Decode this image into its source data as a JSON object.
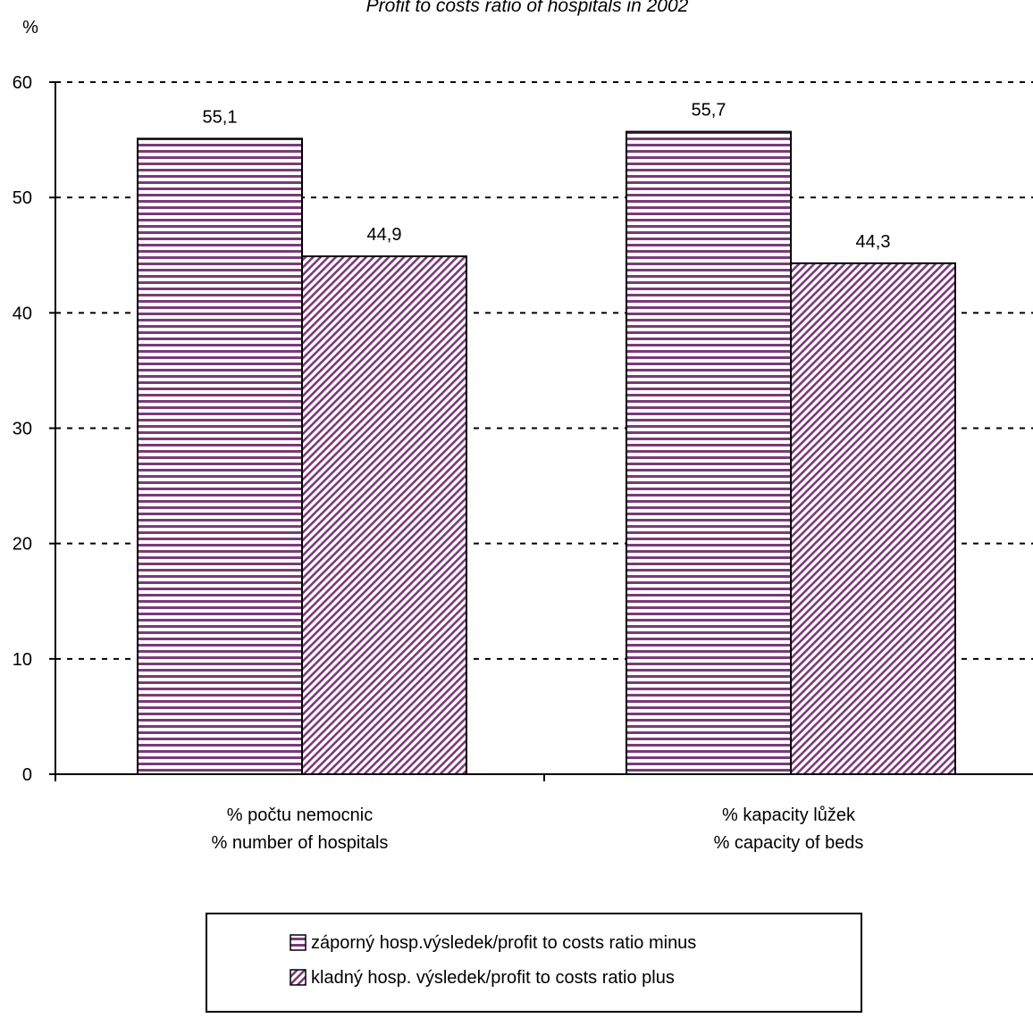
{
  "chart_data": {
    "type": "bar",
    "title": "Profit to costs ratio of hospitals in 2002",
    "ylabel": "%",
    "xlabel": "",
    "ylim": [
      0,
      60
    ],
    "yticks": [
      0,
      10,
      20,
      30,
      40,
      50,
      60
    ],
    "grid": true,
    "legend_position": "bottom",
    "categories": [
      [
        "% počtu nemocnic",
        "% number of hospitals"
      ],
      [
        "% kapacity lůžek",
        "% capacity of beds"
      ]
    ],
    "series": [
      {
        "name": "záporný hosp.výsledek/profit to costs ratio minus",
        "values": [
          55.1,
          55.7
        ],
        "labels": [
          "55,1",
          "55,7"
        ],
        "pattern": "horizontal-stripes",
        "color": "#7a3a78"
      },
      {
        "name": "kladný hosp. výsledek/profit to costs ratio plus",
        "values": [
          44.9,
          44.3
        ],
        "labels": [
          "44,9",
          "44,3"
        ],
        "pattern": "diagonal-stripes",
        "color": "#7a3a78"
      }
    ]
  }
}
